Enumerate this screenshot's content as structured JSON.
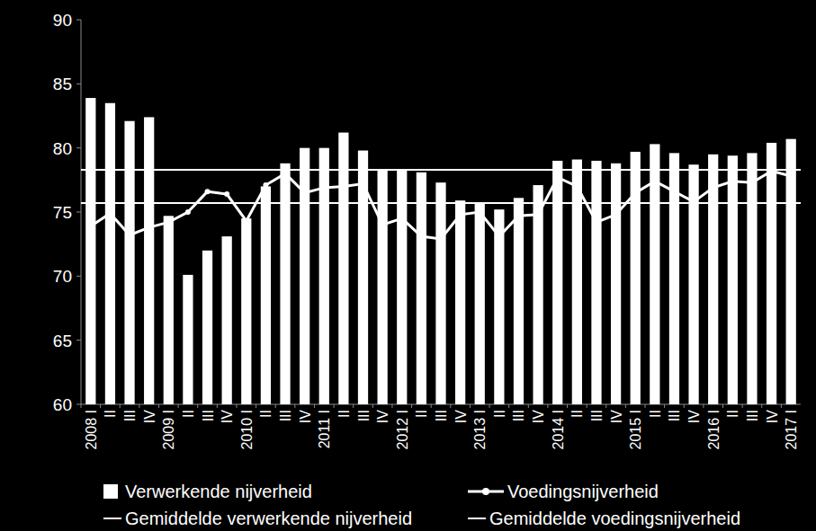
{
  "chart_data": {
    "type": "bar",
    "categories": [
      "2008 I",
      "II",
      "III",
      "IV",
      "2009 I",
      "II",
      "III",
      "IV",
      "2010 I",
      "II",
      "III",
      "IV",
      "2011 I",
      "II",
      "III",
      "IV",
      "2012 I",
      "II",
      "III",
      "IV",
      "2013 I",
      "II",
      "III",
      "IV",
      "2014 I",
      "II",
      "III",
      "IV",
      "2015 I",
      "II",
      "III",
      "IV",
      "2016 I",
      "II",
      "III",
      "IV",
      "2017 I"
    ],
    "series": [
      {
        "name": "Verwerkende nijverheid",
        "type": "bar",
        "color": "#ffffff",
        "values": [
          83.9,
          83.5,
          82.1,
          82.4,
          74.7,
          70.1,
          72.0,
          73.1,
          74.5,
          77.0,
          78.8,
          80.0,
          80.0,
          81.2,
          79.8,
          78.3,
          78.3,
          78.1,
          77.3,
          75.9,
          75.7,
          75.2,
          76.1,
          77.1,
          79.0,
          79.1,
          79.0,
          78.8,
          79.7,
          80.3,
          79.6,
          78.7,
          79.5,
          79.4,
          79.6,
          80.4,
          80.7
        ]
      },
      {
        "name": "Voedingsnijverheid",
        "type": "line",
        "marker": "circle",
        "color": "#ffffff",
        "values": [
          73.9,
          74.9,
          73.2,
          73.8,
          74.2,
          75.0,
          76.6,
          76.4,
          74.3,
          77.1,
          78.0,
          76.5,
          76.9,
          77.0,
          77.2,
          74.0,
          74.5,
          73.1,
          72.9,
          74.8,
          75.0,
          73.1,
          74.7,
          74.8,
          77.7,
          77.0,
          74.2,
          74.8,
          76.5,
          77.4,
          76.6,
          75.8,
          76.9,
          77.4,
          77.3,
          78.2,
          77.8
        ]
      },
      {
        "name": "Gemiddelde verwerkende nijverheid",
        "type": "hline",
        "color": "#ffffff",
        "value": 78.3
      },
      {
        "name": "Gemiddelde voedingsnijverheid",
        "type": "hline",
        "color": "#ffffff",
        "value": 75.7
      }
    ],
    "ylim": [
      60,
      90
    ],
    "yticks": [
      60,
      65,
      70,
      75,
      80,
      85,
      90
    ],
    "grid": false
  }
}
